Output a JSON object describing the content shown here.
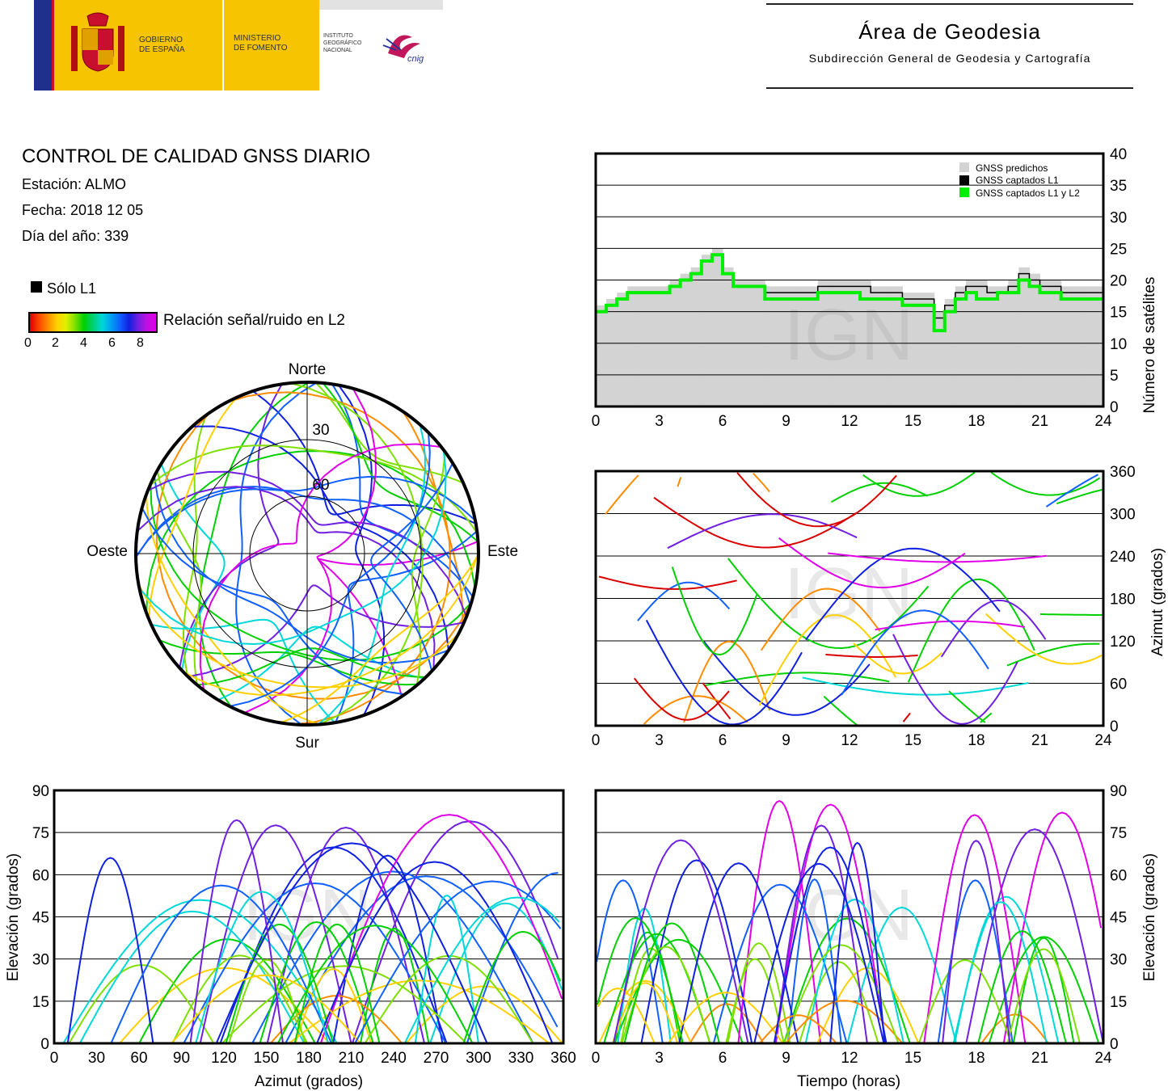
{
  "header": {
    "gobierno": "GOBIERNO\nDE ESPAÑA",
    "ministerio": "MINISTERIO\nDE FOMENTO",
    "instituto": "INSTITUTO\nGEOGRÁFICO\nNACIONAL",
    "cnig": "cnig",
    "area_title": "Área de Geodesia",
    "area_subtitle": "Subdirección General de Geodesia y Cartografía"
  },
  "report": {
    "title": "CONTROL DE CALIDAD GNSS DIARIO",
    "station": "Estación: ALMO",
    "date": "Fecha: 2018 12 05",
    "doy": "Día del año: 339"
  },
  "legend": {
    "solo_l1": "Sólo L1",
    "snr_label": "Relación señal/ruido en L2",
    "snr_ticks": [
      "0",
      "2",
      "4",
      "6",
      "8"
    ]
  },
  "watermark": "IGN",
  "colors": {
    "predicted": "#d3d3d3",
    "l1": "#000000",
    "l1l2": "#00ee00",
    "snr_scale": [
      "#d90000",
      "#ff8c00",
      "#ffd000",
      "#7fe000",
      "#00d000",
      "#00d8d8",
      "#1060ff",
      "#1020e0",
      "#7020e0",
      "#e000e8"
    ]
  },
  "chart_data": [
    {
      "id": "satellite-count",
      "type": "area",
      "xlabel": "",
      "ylabel": "Número de satélites",
      "xlim": [
        0,
        24
      ],
      "ylim": [
        0,
        40
      ],
      "xticks": [
        "0",
        "3",
        "6",
        "9",
        "12",
        "15",
        "18",
        "21",
        "24"
      ],
      "yticks": [
        "0",
        "5",
        "10",
        "15",
        "20",
        "25",
        "30",
        "35",
        "40"
      ],
      "grid": true,
      "legend_position": "top-right",
      "x": [
        0,
        0.5,
        1,
        1.5,
        2,
        2.5,
        3,
        3.5,
        4,
        4.5,
        5,
        5.5,
        6,
        6.5,
        7,
        7.5,
        8,
        8.5,
        9,
        9.5,
        10,
        10.5,
        11,
        11.5,
        12,
        12.5,
        13,
        13.5,
        14,
        14.5,
        15,
        15.5,
        16,
        16.5,
        17,
        17.5,
        18,
        18.5,
        19,
        19.5,
        20,
        20.5,
        21,
        21.5,
        22,
        22.5,
        23,
        23.5,
        24
      ],
      "series": [
        {
          "name": "GNSS predichos",
          "values": [
            16,
            17,
            18,
            19,
            19,
            19,
            19,
            20,
            21,
            22,
            24,
            25,
            22,
            20,
            20,
            20,
            19,
            19,
            19,
            19,
            19,
            20,
            20,
            20,
            20,
            20,
            19,
            19,
            19,
            18,
            18,
            18,
            15,
            17,
            19,
            20,
            20,
            19,
            19,
            20,
            22,
            21,
            20,
            20,
            19,
            19,
            19,
            19,
            19
          ]
        },
        {
          "name": "GNSS captados L1",
          "values": [
            15,
            16,
            17,
            18,
            18,
            18,
            18,
            19,
            20,
            21,
            23,
            24,
            21,
            19,
            19,
            19,
            18,
            18,
            18,
            18,
            18,
            19,
            19,
            19,
            19,
            19,
            18,
            18,
            18,
            17,
            17,
            17,
            14,
            16,
            18,
            19,
            19,
            18,
            18,
            19,
            21,
            20,
            19,
            19,
            18,
            18,
            18,
            18,
            18
          ]
        },
        {
          "name": "GNSS captados L1 y L2",
          "values": [
            15,
            16,
            17,
            18,
            18,
            18,
            18,
            19,
            20,
            21,
            23,
            24,
            21,
            19,
            19,
            19,
            17,
            17,
            17,
            17,
            17,
            18,
            18,
            18,
            18,
            17,
            17,
            17,
            17,
            16,
            16,
            16,
            12,
            15,
            17,
            18,
            17,
            17,
            18,
            18,
            20,
            19,
            18,
            18,
            17,
            17,
            17,
            17,
            17
          ]
        }
      ]
    },
    {
      "id": "azimuth-vs-time",
      "type": "scatter",
      "xlabel": "",
      "ylabel": "Azimut (grados)",
      "xlim": [
        0,
        24
      ],
      "ylim": [
        0,
        360
      ],
      "xticks": [
        "0",
        "3",
        "6",
        "9",
        "12",
        "15",
        "18",
        "21",
        "24"
      ],
      "yticks": [
        "0",
        "60",
        "120",
        "180",
        "240",
        "300",
        "360"
      ],
      "grid": true
    },
    {
      "id": "skyplot",
      "type": "scatter",
      "directions": {
        "north": "Norte",
        "south": "Sur",
        "east": "Este",
        "west": "Oeste"
      },
      "rings": [
        "30",
        "60"
      ]
    },
    {
      "id": "elevation-vs-azimuth",
      "type": "scatter",
      "xlabel": "Azimut (grados)",
      "ylabel": "Elevación (grados)",
      "xlim": [
        0,
        360
      ],
      "ylim": [
        0,
        90
      ],
      "xticks": [
        "0",
        "30",
        "60",
        "90",
        "120",
        "150",
        "180",
        "210",
        "240",
        "270",
        "300",
        "330",
        "360"
      ],
      "yticks": [
        "0",
        "15",
        "30",
        "45",
        "60",
        "75",
        "90"
      ],
      "grid": true
    },
    {
      "id": "elevation-vs-time",
      "type": "line",
      "xlabel": "Tiempo (horas)",
      "ylabel": "Elevación (grados)",
      "xlim": [
        0,
        24
      ],
      "ylim": [
        0,
        90
      ],
      "xticks": [
        "0",
        "3",
        "6",
        "9",
        "12",
        "15",
        "18",
        "21",
        "24"
      ],
      "yticks": [
        "0",
        "15",
        "30",
        "45",
        "60",
        "75",
        "90"
      ],
      "grid": true
    }
  ]
}
